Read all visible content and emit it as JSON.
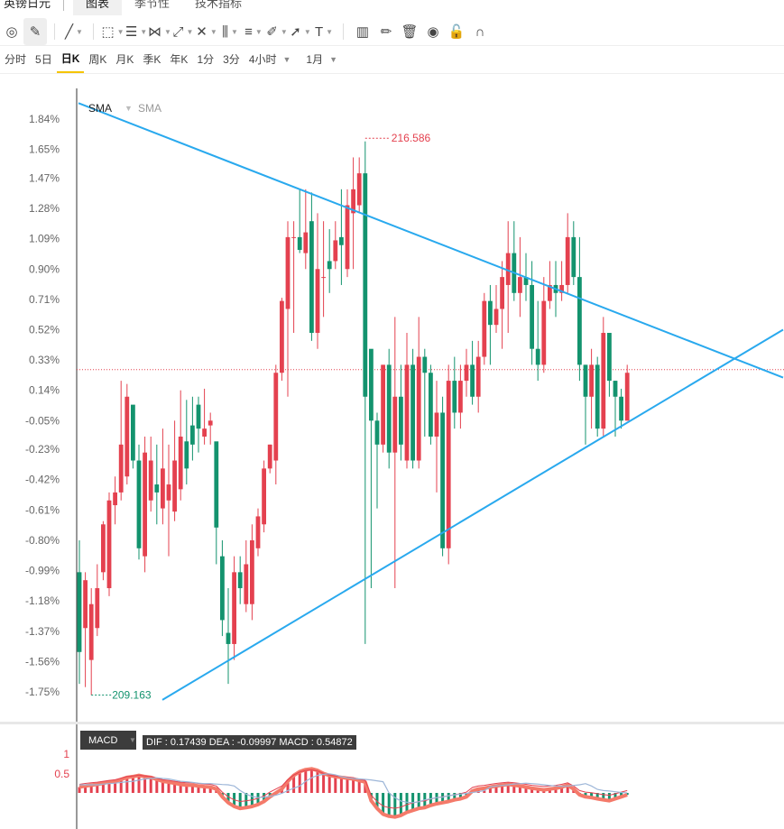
{
  "topbar": {
    "instrument": "英镑日元",
    "tabs": [
      "图表",
      "季节性",
      "技术指标"
    ],
    "active_tab": 0
  },
  "toolbar": {
    "icons": [
      "magnet-icon",
      "pen-icon",
      "line-icon",
      "rect-icon",
      "horizontal-lines-icon",
      "pattern-icon",
      "fib-icon",
      "measure-icon",
      "channel-icon",
      "brush-icon",
      "arrow-icon",
      "text-icon",
      "candle-style-icon",
      "edit-icon",
      "trash-icon",
      "eye-icon",
      "lock-icon",
      "magnet-u-icon"
    ]
  },
  "periods": {
    "items": [
      "分时",
      "5日",
      "日K",
      "周K",
      "月K",
      "季K",
      "年K",
      "1分",
      "3分",
      "4小时"
    ],
    "active": "日K",
    "range": "1月"
  },
  "indicator": {
    "sma_label_1": "SMA",
    "sma_label_2": "SMA"
  },
  "annotations": {
    "high_label": "216.586",
    "low_label": "209.163"
  },
  "macd": {
    "tag": "MACD",
    "values": "DIF : 0.17439  DEA : -0.09997  MACD : 0.54872",
    "y_labels": [
      "1",
      "0.5"
    ]
  },
  "colors": {
    "up": "#e4414f",
    "down": "#13936e",
    "trendline": "#29a9ee",
    "price_line": "#e4414f",
    "macd_thick": "#f47a6a",
    "dif_line": "#e4414f",
    "dea_line": "#9db6d8",
    "axis_text": "#666666"
  },
  "chart_data": {
    "type": "candlestick",
    "y_axis_percent_ticks": [
      "1.84%",
      "1.65%",
      "1.47%",
      "1.28%",
      "1.09%",
      "0.90%",
      "0.71%",
      "0.52%",
      "0.33%",
      "0.14%",
      "-0.05%",
      "-0.23%",
      "-0.42%",
      "-0.61%",
      "-0.80%",
      "-0.99%",
      "-1.18%",
      "-1.37%",
      "-1.56%",
      "-1.75%"
    ],
    "y_range_percent": [
      -1.75,
      1.84
    ],
    "reference_line_percent": 0.27,
    "high_marker": {
      "value": 216.586,
      "percent": 1.72
    },
    "low_marker": {
      "value": 209.163,
      "percent": -1.77
    },
    "candles_percent": [
      [
        -1.0,
        -1.5,
        -0.8,
        -1.7
      ],
      [
        -1.35,
        -1.05,
        -1.0,
        -1.72
      ],
      [
        -1.55,
        -1.2,
        -1.1,
        -1.77
      ],
      [
        -1.35,
        -1.1,
        -0.95,
        -1.4
      ],
      [
        -1.0,
        -0.7,
        -0.68,
        -1.05
      ],
      [
        -1.1,
        -0.55,
        -0.5,
        -1.15
      ],
      [
        -0.58,
        -0.5,
        -0.4,
        -0.7
      ],
      [
        -0.5,
        -0.2,
        0.2,
        -0.55
      ],
      [
        -0.4,
        0.1,
        0.18,
        -0.45
      ],
      [
        0.05,
        -0.3,
        0.02,
        -0.35
      ],
      [
        -0.3,
        -0.85,
        -0.2,
        -0.92
      ],
      [
        -0.9,
        -0.25,
        -0.15,
        -1.0
      ],
      [
        -0.55,
        -0.3,
        -0.15,
        -0.62
      ],
      [
        -0.45,
        -0.5,
        -0.2,
        -0.7
      ],
      [
        -0.6,
        -0.35,
        -0.1,
        -0.7
      ],
      [
        -0.55,
        -0.45,
        -0.2,
        -0.9
      ],
      [
        -0.62,
        -0.3,
        -0.05,
        -0.68
      ],
      [
        -0.48,
        -0.15,
        0.14,
        -0.55
      ],
      [
        -0.18,
        -0.35,
        0.08,
        -0.45
      ],
      [
        -0.08,
        -0.2,
        0.1,
        -0.3
      ],
      [
        0.05,
        -0.1,
        0.1,
        -0.25
      ],
      [
        -0.15,
        -0.1,
        0.15,
        -0.2
      ],
      [
        -0.08,
        -0.05,
        0.0,
        -0.2
      ],
      [
        -0.18,
        -0.72,
        -0.2,
        -0.95
      ],
      [
        -0.9,
        -1.3,
        -0.8,
        -1.4
      ],
      [
        -1.38,
        -1.45,
        -1.1,
        -1.7
      ],
      [
        -1.45,
        -1.0,
        -0.9,
        -1.55
      ],
      [
        -1.0,
        -1.1,
        -0.9,
        -1.2
      ],
      [
        -1.2,
        -0.95,
        -0.8,
        -1.25
      ],
      [
        -1.2,
        -0.8,
        -0.7,
        -1.3
      ],
      [
        -0.85,
        -0.65,
        -0.6,
        -0.9
      ],
      [
        -0.7,
        -0.35,
        -0.3,
        -0.75
      ],
      [
        -0.35,
        -0.2,
        -0.2,
        -0.38
      ],
      [
        -0.3,
        0.25,
        0.3,
        -0.45
      ],
      [
        0.25,
        0.7,
        0.72,
        0.2
      ],
      [
        0.65,
        1.1,
        1.2,
        0.1
      ],
      [
        1.1,
        1.1,
        1.2,
        0.5
      ],
      [
        1.1,
        1.02,
        1.4,
        1.0
      ],
      [
        1.0,
        1.13,
        1.4,
        0.9
      ],
      [
        1.2,
        0.5,
        1.38,
        0.45
      ],
      [
        0.5,
        0.9,
        1.25,
        0.4
      ],
      [
        0.85,
        0.85,
        1.2,
        0.6
      ],
      [
        0.95,
        0.9,
        1.15,
        0.75
      ],
      [
        0.95,
        1.08,
        1.2,
        0.9
      ],
      [
        1.1,
        1.05,
        1.4,
        0.8
      ],
      [
        0.9,
        1.3,
        1.4,
        0.85
      ],
      [
        1.25,
        1.4,
        1.6,
        0.9
      ],
      [
        1.3,
        1.5,
        1.6,
        1.25
      ],
      [
        1.5,
        0.1,
        1.7,
        -1.45
      ],
      [
        0.4,
        -0.05,
        0.1,
        -1.1
      ],
      [
        -0.05,
        -0.2,
        0.0,
        -0.6
      ],
      [
        -0.2,
        0.3,
        0.3,
        -0.25
      ],
      [
        0.3,
        -0.25,
        0.4,
        -0.35
      ],
      [
        -0.25,
        0.1,
        0.6,
        -1.1
      ],
      [
        0.1,
        -0.2,
        0.3,
        -0.3
      ],
      [
        -0.3,
        0.3,
        0.5,
        -0.35
      ],
      [
        0.3,
        -0.3,
        0.4,
        -0.35
      ],
      [
        -0.3,
        0.35,
        0.6,
        -0.35
      ],
      [
        0.35,
        0.25,
        0.4,
        -0.15
      ],
      [
        0.25,
        -0.15,
        0.3,
        -0.2
      ],
      [
        -0.15,
        0.0,
        0.2,
        -0.5
      ],
      [
        0.0,
        -0.85,
        0.1,
        -0.9
      ],
      [
        -0.85,
        0.2,
        0.3,
        -0.95
      ],
      [
        0.2,
        0.0,
        0.35,
        -0.1
      ],
      [
        0.0,
        0.2,
        0.3,
        -0.1
      ],
      [
        0.2,
        0.3,
        0.4,
        0.1
      ],
      [
        0.3,
        0.1,
        0.45,
        0.05
      ],
      [
        0.1,
        0.35,
        0.45,
        0.0
      ],
      [
        0.35,
        0.7,
        0.75,
        0.3
      ],
      [
        0.7,
        0.55,
        0.8,
        0.3
      ],
      [
        0.55,
        0.65,
        0.8,
        0.5
      ],
      [
        0.65,
        0.85,
        0.95,
        0.4
      ],
      [
        0.8,
        1.0,
        1.2,
        0.5
      ],
      [
        1.0,
        0.75,
        1.2,
        0.7
      ],
      [
        0.75,
        0.85,
        1.1,
        0.6
      ],
      [
        0.85,
        0.8,
        1.0,
        0.7
      ],
      [
        0.8,
        0.4,
        0.95,
        0.3
      ],
      [
        0.4,
        0.3,
        0.7,
        0.2
      ],
      [
        0.3,
        0.7,
        0.85,
        0.25
      ],
      [
        0.7,
        0.8,
        0.95,
        0.65
      ],
      [
        0.8,
        0.75,
        0.95,
        0.6
      ],
      [
        0.75,
        0.8,
        0.95,
        0.7
      ],
      [
        0.8,
        1.1,
        1.25,
        0.75
      ],
      [
        1.1,
        0.85,
        1.2,
        0.8
      ],
      [
        0.85,
        0.3,
        1.1,
        0.2
      ],
      [
        0.3,
        0.1,
        0.3,
        -0.2
      ],
      [
        0.1,
        0.3,
        0.4,
        -0.1
      ],
      [
        0.3,
        -0.1,
        0.35,
        -0.15
      ],
      [
        -0.1,
        0.5,
        0.6,
        -0.15
      ],
      [
        0.5,
        0.2,
        0.4,
        0.1
      ],
      [
        0.2,
        0.1,
        0.2,
        -0.15
      ],
      [
        0.1,
        -0.05,
        0.15,
        -0.1
      ],
      [
        -0.05,
        0.25,
        0.3,
        -0.05
      ]
    ],
    "trendlines": [
      {
        "name": "upper",
        "from_pct": [
          1.94,
          87
        ],
        "to_pct": [
          0.22,
          868
        ]
      },
      {
        "name": "lower",
        "from_pct": [
          -1.8,
          180
        ],
        "to_pct": [
          0.52,
          868
        ]
      }
    ],
    "macd_histogram": [
      0.15,
      0.18,
      0.2,
      0.22,
      0.25,
      0.28,
      0.3,
      0.35,
      0.4,
      0.42,
      0.45,
      0.42,
      0.4,
      0.35,
      0.3,
      0.28,
      0.25,
      0.22,
      0.2,
      0.2,
      0.18,
      0.16,
      0.15,
      0.1,
      -0.1,
      -0.25,
      -0.35,
      -0.4,
      -0.38,
      -0.35,
      -0.3,
      -0.22,
      -0.1,
      0.0,
      0.1,
      0.3,
      0.45,
      0.55,
      0.6,
      0.62,
      0.58,
      0.5,
      0.45,
      0.42,
      0.4,
      0.38,
      0.36,
      0.32,
      0.28,
      -0.2,
      -0.4,
      -0.55,
      -0.6,
      -0.62,
      -0.58,
      -0.5,
      -0.45,
      -0.4,
      -0.38,
      -0.32,
      -0.28,
      -0.25,
      -0.22,
      -0.18,
      -0.15,
      -0.1,
      0.05,
      0.1,
      0.12,
      0.15,
      0.18,
      0.2,
      0.22,
      0.2,
      0.18,
      0.15,
      0.12,
      0.1,
      0.08,
      0.1,
      0.12,
      0.15,
      0.2,
      0.1,
      -0.05,
      -0.1,
      -0.12,
      -0.15,
      -0.18,
      -0.2,
      -0.15,
      -0.1,
      -0.05
    ]
  }
}
